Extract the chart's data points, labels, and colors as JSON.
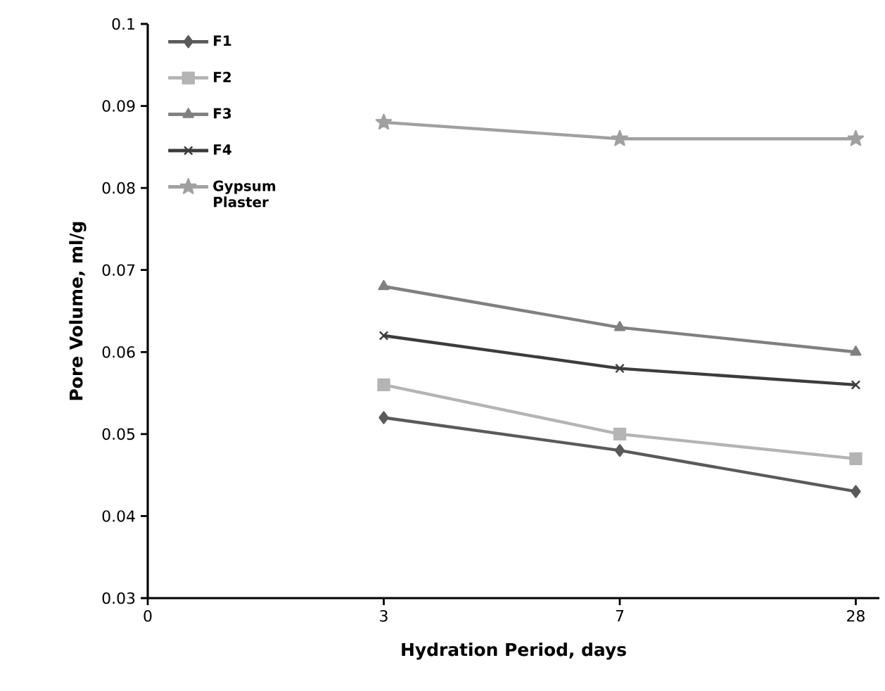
{
  "chart_data": {
    "type": "line",
    "xlabel": "Hydration Period, days",
    "ylabel": "Pore Volume, ml/g",
    "categories": [
      "0",
      "3",
      "7",
      "28"
    ],
    "ylim": [
      0.03,
      0.1
    ],
    "yticks": [
      {
        "value": 0.03,
        "label": "0.03"
      },
      {
        "value": 0.04,
        "label": "0.04"
      },
      {
        "value": 0.05,
        "label": "0.05"
      },
      {
        "value": 0.06,
        "label": "0.06"
      },
      {
        "value": 0.07,
        "label": "0.07"
      },
      {
        "value": 0.08,
        "label": "0.08"
      },
      {
        "value": 0.09,
        "label": "0.09"
      },
      {
        "value": 0.1,
        "label": "0.1"
      }
    ],
    "grid": false,
    "legend": "top left",
    "line_style": "solid",
    "series": [
      {
        "name": "F1",
        "color": "#5a5a5a",
        "marker": "diamond",
        "values": [
          null,
          0.052,
          0.048,
          0.043
        ]
      },
      {
        "name": "F2",
        "color": "#b4b4b4",
        "marker": "square",
        "values": [
          null,
          0.056,
          0.05,
          0.047
        ]
      },
      {
        "name": "F3",
        "color": "#808080",
        "marker": "triangle",
        "values": [
          null,
          0.068,
          0.063,
          0.06
        ]
      },
      {
        "name": "F4",
        "color": "#3c3c3c",
        "marker": "cross",
        "values": [
          null,
          0.062,
          0.058,
          0.056
        ]
      },
      {
        "name": "Gypsum Plaster",
        "color": "#a0a0a0",
        "marker": "star",
        "values": [
          null,
          0.088,
          0.086,
          0.086
        ]
      }
    ]
  }
}
